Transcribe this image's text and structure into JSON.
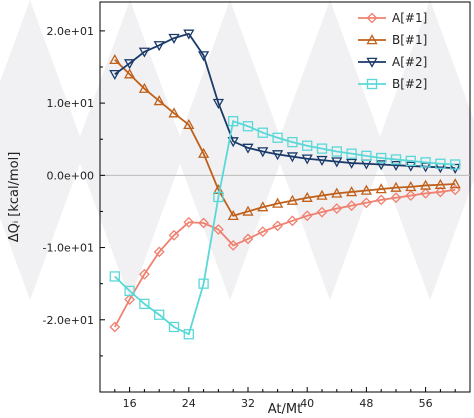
{
  "chart_data": {
    "type": "line",
    "xlabel": "At/Mt",
    "ylabel": "ΔQᵢ [kcal/mol]",
    "xlim": [
      12,
      62
    ],
    "ylim": [
      -30,
      24
    ],
    "x_ticks": [
      16,
      24,
      32,
      40,
      48,
      56
    ],
    "x_tick_labels": [
      "16",
      "24",
      "32",
      "40",
      "48",
      "56"
    ],
    "y_ticks": [
      -20,
      -10,
      0,
      10,
      20
    ],
    "y_tick_labels": [
      "-2.0e+01",
      "-1.0e+01",
      "0.0e+00",
      "1.0e+01",
      "2.0e+01"
    ],
    "legend_placement": "top-right",
    "series": [
      {
        "name": "A[#1]",
        "color": "#f08070",
        "marker": "diamond",
        "x": [
          14,
          16,
          18,
          20,
          22,
          24,
          26,
          28,
          30,
          32,
          34,
          36,
          38,
          40,
          42,
          44,
          46,
          48,
          50,
          52,
          54,
          56,
          58,
          60
        ],
        "values": [
          -21,
          -17.2,
          -13.7,
          -10.6,
          -8.3,
          -6.5,
          -6.6,
          -7.5,
          -9.7,
          -8.8,
          -7.8,
          -7.0,
          -6.3,
          -5.6,
          -5.1,
          -4.6,
          -4.2,
          -3.8,
          -3.4,
          -3.1,
          -2.8,
          -2.5,
          -2.3,
          -2.0
        ]
      },
      {
        "name": "B[#1]",
        "color": "#c0601a",
        "marker": "triangle-up",
        "x": [
          14,
          16,
          18,
          20,
          22,
          24,
          26,
          28,
          30,
          32,
          34,
          36,
          38,
          40,
          42,
          44,
          46,
          48,
          50,
          52,
          54,
          56,
          58,
          60
        ],
        "values": [
          16,
          14,
          12,
          10.3,
          8.6,
          7,
          3,
          -2,
          -5.6,
          -5,
          -4.4,
          -3.9,
          -3.5,
          -3.1,
          -2.8,
          -2.5,
          -2.3,
          -2.1,
          -1.9,
          -1.7,
          -1.6,
          -1.4,
          -1.3,
          -1.2
        ]
      },
      {
        "name": "A[#2]",
        "color": "#1a3a6a",
        "marker": "triangle-down",
        "x": [
          14,
          16,
          18,
          20,
          22,
          24,
          26,
          28,
          30,
          32,
          34,
          36,
          38,
          40,
          42,
          44,
          46,
          48,
          50,
          52,
          54,
          56,
          58,
          60
        ],
        "values": [
          14,
          15.5,
          17.1,
          18,
          19,
          19.6,
          16.6,
          10,
          4.7,
          3.8,
          3.3,
          2.9,
          2.6,
          2.3,
          2.1,
          1.9,
          1.7,
          1.6,
          1.5,
          1.4,
          1.3,
          1.2,
          1.1,
          1.0
        ]
      },
      {
        "name": "B[#2]",
        "color": "#5ad8d8",
        "marker": "square",
        "x": [
          14,
          16,
          18,
          20,
          22,
          24,
          26,
          28,
          30,
          32,
          34,
          36,
          38,
          40,
          42,
          44,
          46,
          48,
          50,
          52,
          54,
          56,
          58,
          60
        ],
        "values": [
          -14,
          -16,
          -17.8,
          -19.3,
          -21,
          -22,
          -15,
          -3,
          7.5,
          6.8,
          5.9,
          5.2,
          4.6,
          4.1,
          3.7,
          3.3,
          3.0,
          2.7,
          2.4,
          2.2,
          2.0,
          1.8,
          1.6,
          1.5
        ]
      }
    ]
  }
}
